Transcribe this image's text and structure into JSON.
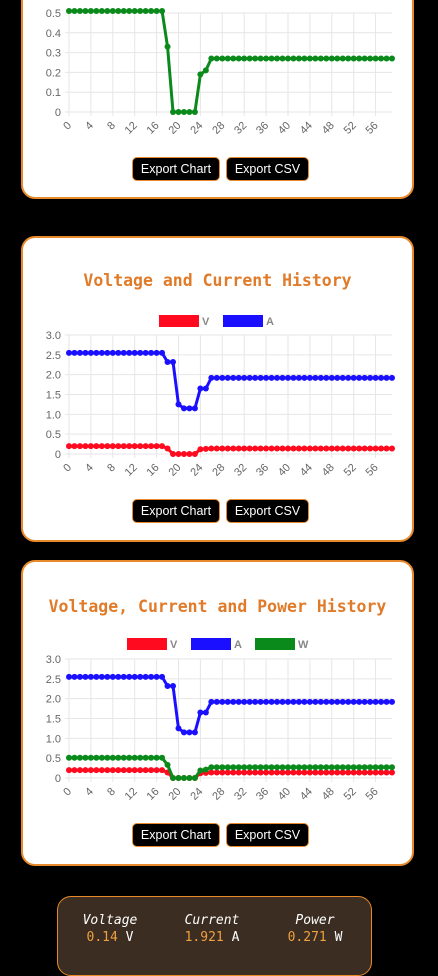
{
  "buttons": {
    "export_chart": "Export Chart",
    "export_csv": "Export CSV"
  },
  "colors": {
    "voltage": "#ff0a1e",
    "current": "#1a10ff",
    "power": "#0b8a1c",
    "accent": "#e8892a"
  },
  "status": {
    "voltage": {
      "label": "Voltage",
      "value": "0.14",
      "unit": "V"
    },
    "current": {
      "label": "Current",
      "value": "1.921",
      "unit": "A"
    },
    "power": {
      "label": "Power",
      "value": "0.271",
      "unit": "W"
    }
  },
  "chart_data": [
    {
      "type": "line",
      "title": "",
      "x": [
        0,
        1,
        2,
        3,
        4,
        5,
        6,
        7,
        8,
        9,
        10,
        11,
        12,
        13,
        14,
        15,
        16,
        17,
        18,
        19,
        20,
        21,
        22,
        23,
        24,
        25,
        26,
        27,
        28,
        29,
        30,
        31,
        32,
        33,
        34,
        35,
        36,
        37,
        38,
        39,
        40,
        41,
        42,
        43,
        44,
        45,
        46,
        47,
        48,
        49,
        50,
        51,
        52,
        53,
        54,
        55,
        56,
        57,
        58,
        59
      ],
      "x_tick_labels": [
        "0",
        "4",
        "8",
        "12",
        "16",
        "20",
        "24",
        "28",
        "32",
        "36",
        "40",
        "44",
        "48",
        "52",
        "56"
      ],
      "y_tick_labels": [
        "0",
        "0.1",
        "0.2",
        "0.3",
        "0.4",
        "0.5"
      ],
      "ylim": [
        0,
        0.5
      ],
      "legend": [],
      "series": [
        {
          "values": [
            0.51,
            0.51,
            0.51,
            0.51,
            0.51,
            0.51,
            0.51,
            0.51,
            0.51,
            0.51,
            0.51,
            0.51,
            0.51,
            0.51,
            0.51,
            0.51,
            0.51,
            0.51,
            0.33,
            0,
            0,
            0,
            0,
            0,
            0.19,
            0.21,
            0.27,
            0.27,
            0.27,
            0.27,
            0.27,
            0.27,
            0.27,
            0.27,
            0.27,
            0.27,
            0.27,
            0.27,
            0.27,
            0.27,
            0.27,
            0.27,
            0.27,
            0.27,
            0.27,
            0.27,
            0.27,
            0.27,
            0.27,
            0.27,
            0.27,
            0.27,
            0.27,
            0.27,
            0.27,
            0.27,
            0.27,
            0.27,
            0.27,
            0.27
          ]
        }
      ]
    },
    {
      "type": "line",
      "title": "Voltage and Current History",
      "x_tick_labels": [
        "0",
        "4",
        "8",
        "12",
        "16",
        "20",
        "24",
        "28",
        "32",
        "36",
        "40",
        "44",
        "48",
        "52",
        "56"
      ],
      "y_tick_labels": [
        "0",
        "0.5",
        "1.0",
        "1.5",
        "2.0",
        "2.5",
        "3.0"
      ],
      "ylim": [
        0,
        3.0
      ],
      "legend": [
        "V",
        "A"
      ],
      "series": [
        {
          "name": "V",
          "values": [
            0.2,
            0.2,
            0.2,
            0.2,
            0.2,
            0.2,
            0.2,
            0.2,
            0.2,
            0.2,
            0.2,
            0.2,
            0.2,
            0.2,
            0.2,
            0.2,
            0.2,
            0.2,
            0.14,
            0,
            0,
            0,
            0,
            0,
            0.12,
            0.13,
            0.14,
            0.14,
            0.14,
            0.14,
            0.14,
            0.14,
            0.14,
            0.14,
            0.14,
            0.14,
            0.14,
            0.14,
            0.14,
            0.14,
            0.14,
            0.14,
            0.14,
            0.14,
            0.14,
            0.14,
            0.14,
            0.14,
            0.14,
            0.14,
            0.14,
            0.14,
            0.14,
            0.14,
            0.14,
            0.14,
            0.14,
            0.14,
            0.14,
            0.14
          ]
        },
        {
          "name": "A",
          "values": [
            2.55,
            2.55,
            2.55,
            2.55,
            2.55,
            2.55,
            2.55,
            2.55,
            2.55,
            2.55,
            2.55,
            2.55,
            2.55,
            2.55,
            2.55,
            2.55,
            2.55,
            2.55,
            2.32,
            2.32,
            1.25,
            1.15,
            1.15,
            1.15,
            1.65,
            1.65,
            1.92,
            1.92,
            1.92,
            1.92,
            1.92,
            1.92,
            1.92,
            1.92,
            1.92,
            1.92,
            1.92,
            1.92,
            1.92,
            1.92,
            1.92,
            1.92,
            1.92,
            1.92,
            1.92,
            1.92,
            1.92,
            1.92,
            1.92,
            1.92,
            1.92,
            1.92,
            1.92,
            1.92,
            1.92,
            1.92,
            1.92,
            1.92,
            1.92,
            1.92
          ]
        }
      ]
    },
    {
      "type": "line",
      "title": "Voltage, Current and Power History",
      "x_tick_labels": [
        "0",
        "4",
        "8",
        "12",
        "16",
        "20",
        "24",
        "28",
        "32",
        "36",
        "40",
        "44",
        "48",
        "52",
        "56"
      ],
      "y_tick_labels": [
        "0",
        "0.5",
        "1.0",
        "1.5",
        "2.0",
        "2.5",
        "3.0"
      ],
      "ylim": [
        0,
        3.0
      ],
      "legend": [
        "V",
        "A",
        "W"
      ],
      "series": [
        {
          "name": "V",
          "values": [
            0.2,
            0.2,
            0.2,
            0.2,
            0.2,
            0.2,
            0.2,
            0.2,
            0.2,
            0.2,
            0.2,
            0.2,
            0.2,
            0.2,
            0.2,
            0.2,
            0.2,
            0.2,
            0.14,
            0,
            0,
            0,
            0,
            0,
            0.12,
            0.13,
            0.14,
            0.14,
            0.14,
            0.14,
            0.14,
            0.14,
            0.14,
            0.14,
            0.14,
            0.14,
            0.14,
            0.14,
            0.14,
            0.14,
            0.14,
            0.14,
            0.14,
            0.14,
            0.14,
            0.14,
            0.14,
            0.14,
            0.14,
            0.14,
            0.14,
            0.14,
            0.14,
            0.14,
            0.14,
            0.14,
            0.14,
            0.14,
            0.14,
            0.14
          ]
        },
        {
          "name": "A",
          "values": [
            2.55,
            2.55,
            2.55,
            2.55,
            2.55,
            2.55,
            2.55,
            2.55,
            2.55,
            2.55,
            2.55,
            2.55,
            2.55,
            2.55,
            2.55,
            2.55,
            2.55,
            2.55,
            2.32,
            2.32,
            1.25,
            1.15,
            1.15,
            1.15,
            1.65,
            1.65,
            1.92,
            1.92,
            1.92,
            1.92,
            1.92,
            1.92,
            1.92,
            1.92,
            1.92,
            1.92,
            1.92,
            1.92,
            1.92,
            1.92,
            1.92,
            1.92,
            1.92,
            1.92,
            1.92,
            1.92,
            1.92,
            1.92,
            1.92,
            1.92,
            1.92,
            1.92,
            1.92,
            1.92,
            1.92,
            1.92,
            1.92,
            1.92,
            1.92,
            1.92
          ]
        },
        {
          "name": "W",
          "values": [
            0.51,
            0.51,
            0.51,
            0.51,
            0.51,
            0.51,
            0.51,
            0.51,
            0.51,
            0.51,
            0.51,
            0.51,
            0.51,
            0.51,
            0.51,
            0.51,
            0.51,
            0.51,
            0.33,
            0,
            0,
            0,
            0,
            0,
            0.19,
            0.21,
            0.27,
            0.27,
            0.27,
            0.27,
            0.27,
            0.27,
            0.27,
            0.27,
            0.27,
            0.27,
            0.27,
            0.27,
            0.27,
            0.27,
            0.27,
            0.27,
            0.27,
            0.27,
            0.27,
            0.27,
            0.27,
            0.27,
            0.27,
            0.27,
            0.27,
            0.27,
            0.27,
            0.27,
            0.27,
            0.27,
            0.27,
            0.27,
            0.27,
            0.27
          ]
        }
      ]
    }
  ]
}
